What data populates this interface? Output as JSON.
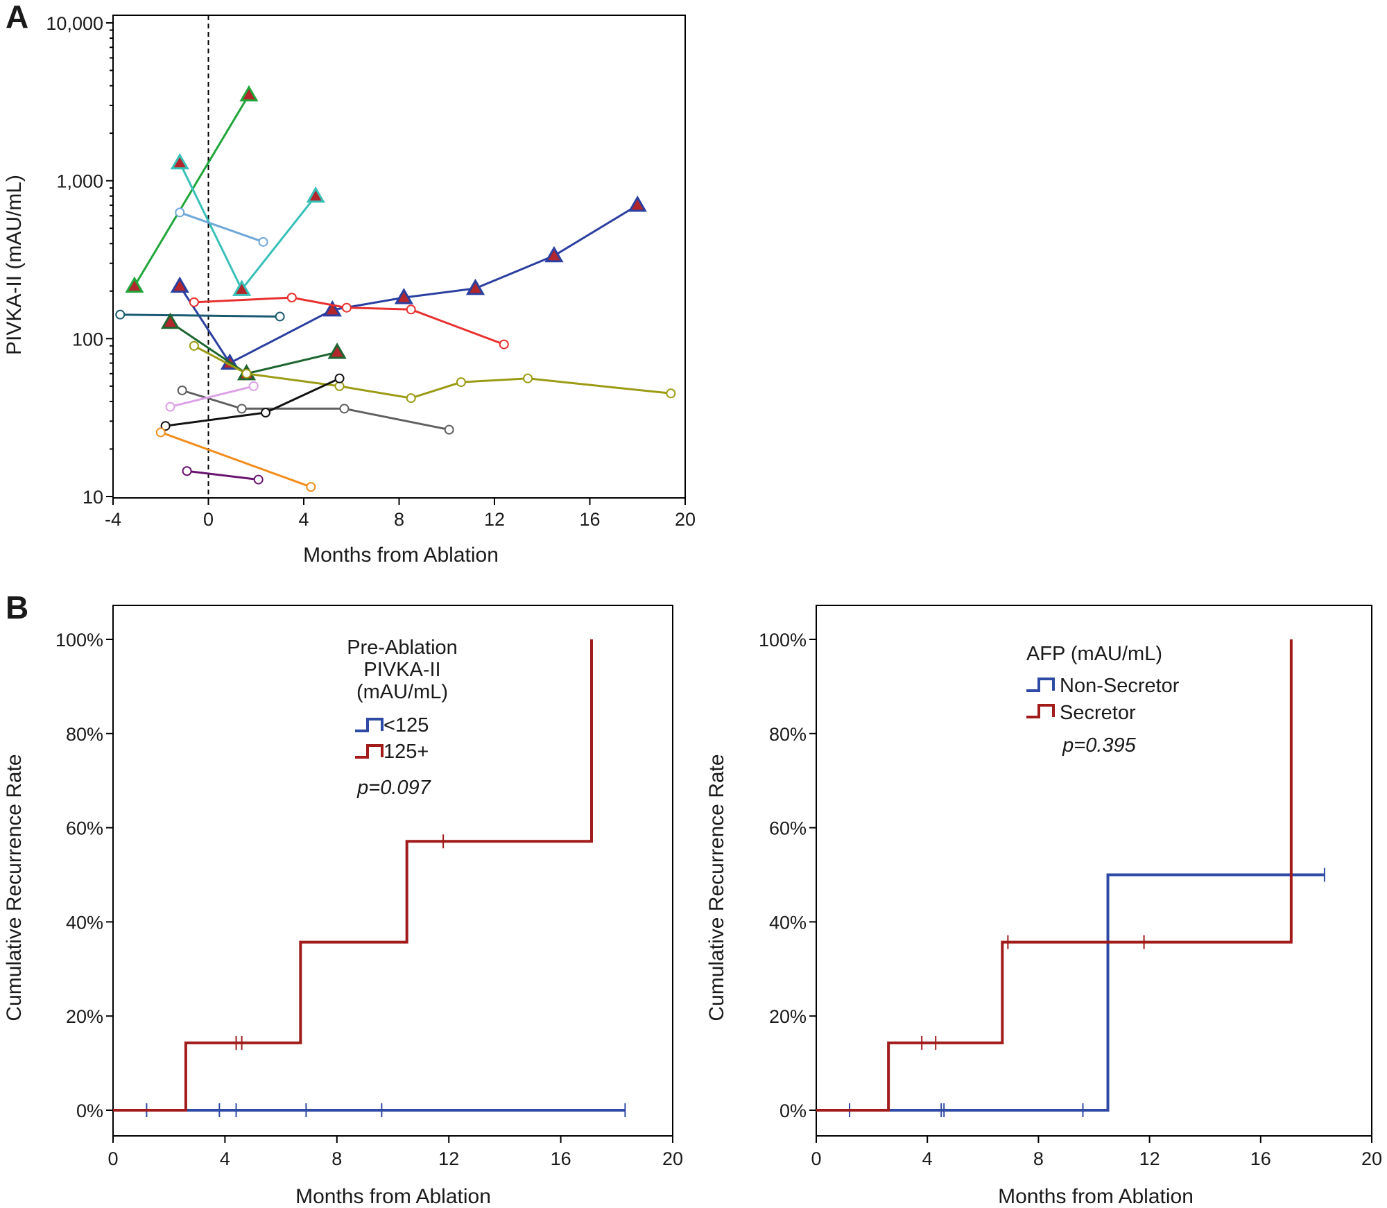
{
  "panel_labels": {
    "a": "A",
    "b": "B"
  },
  "chart_data": [
    {
      "id": "A",
      "type": "line",
      "title": "",
      "xlabel": "Months from Ablation",
      "ylabel": "PIVKA-II (mAU/mL)",
      "xlim": [
        -4,
        20
      ],
      "x_ticks": [
        -4,
        0,
        4,
        8,
        12,
        16,
        20
      ],
      "ylim": [
        10,
        10000
      ],
      "y_scale": "log",
      "y_ticks": [
        10,
        100,
        1000,
        10000
      ],
      "y_tick_labels": [
        "10",
        "100",
        "1,000",
        "10,000"
      ],
      "reference_line": {
        "x": 0,
        "style": "dashed"
      },
      "grid": false,
      "series": [
        {
          "color": "#21a63a",
          "marker": "triangle",
          "points": [
            [
              -3.1,
              215
            ],
            [
              1.7,
              3500
            ]
          ]
        },
        {
          "color": "#37c0b8",
          "marker": "triangle",
          "points": [
            [
              -1.2,
              1300
            ],
            [
              1.4,
              205
            ],
            [
              4.5,
              800
            ]
          ]
        },
        {
          "color": "#6ea7d8",
          "marker": "circle",
          "points": [
            [
              -1.2,
              630
            ],
            [
              2.3,
              410
            ]
          ]
        },
        {
          "color": "#2b3fa0",
          "marker": "triangle",
          "points": [
            [
              -1.2,
              215
            ],
            [
              0.9,
              70
            ],
            [
              5.2,
              152
            ],
            [
              8.2,
              182
            ],
            [
              11.2,
              208
            ],
            [
              14.5,
              335
            ],
            [
              18.0,
              700
            ]
          ]
        },
        {
          "color": "#e8302e",
          "marker": "circle",
          "points": [
            [
              -0.6,
              170
            ],
            [
              3.5,
              182
            ],
            [
              5.8,
              157
            ],
            [
              8.5,
              153
            ],
            [
              12.4,
              92
            ]
          ]
        },
        {
          "color": "#1a5a70",
          "marker": "circle",
          "points": [
            [
              -3.7,
              142
            ],
            [
              3.0,
              138
            ]
          ]
        },
        {
          "color": "#1e6630",
          "marker": "triangle",
          "points": [
            [
              -1.6,
              127
            ],
            [
              1.6,
              60
            ],
            [
              5.4,
              82
            ]
          ]
        },
        {
          "color": "#9b9b14",
          "marker": "circle",
          "points": [
            [
              -0.6,
              90
            ],
            [
              1.6,
              60
            ],
            [
              5.5,
              50
            ],
            [
              8.5,
              42
            ],
            [
              10.6,
              53
            ],
            [
              13.4,
              56
            ],
            [
              19.4,
              45
            ]
          ]
        },
        {
          "color": "#606060",
          "marker": "circle",
          "points": [
            [
              -1.1,
              47
            ],
            [
              1.4,
              36
            ],
            [
              5.7,
              36
            ],
            [
              10.1,
              26.5
            ]
          ]
        },
        {
          "color": "#dca0e6",
          "marker": "circle",
          "points": [
            [
              -1.6,
              37
            ],
            [
              1.9,
              50
            ]
          ]
        },
        {
          "color": "#111111",
          "marker": "circle",
          "points": [
            [
              -1.8,
              28
            ],
            [
              2.4,
              34
            ],
            [
              5.5,
              56
            ]
          ]
        },
        {
          "color": "#f28c1a",
          "marker": "circle",
          "points": [
            [
              -2.0,
              25.5
            ],
            [
              4.3,
              11.5
            ]
          ]
        },
        {
          "color": "#6a1470",
          "marker": "circle",
          "points": [
            [
              -0.9,
              14.5
            ],
            [
              2.1,
              12.8
            ]
          ]
        }
      ]
    },
    {
      "id": "B-left",
      "type": "line",
      "step": true,
      "title": "",
      "xlabel": "Months from Ablation",
      "ylabel": "Cumulative Recurrence Rate",
      "xlim": [
        0,
        20
      ],
      "x_ticks": [
        0,
        4,
        8,
        12,
        16,
        20
      ],
      "ylim": [
        0,
        1.0
      ],
      "y_ticks": [
        0,
        0.2,
        0.4,
        0.6,
        0.8,
        1.0
      ],
      "y_tick_labels": [
        "0%",
        "20%",
        "40%",
        "60%",
        "80%",
        "100%"
      ],
      "legend": {
        "title_lines": [
          "Pre-Ablation",
          "PIVKA-II",
          "(mAU/mL)"
        ],
        "pvalue": "p=0.097",
        "placement": "top-center"
      },
      "series": [
        {
          "name": "<125",
          "color": "#2e4aa5",
          "steps": [
            [
              0,
              0
            ],
            [
              18.3,
              0
            ]
          ],
          "censor_x": [
            1.2,
            3.8,
            4.4,
            6.9,
            9.6,
            18.3
          ]
        },
        {
          "name": "125+",
          "color": "#a11b1b",
          "steps": [
            [
              0,
              0
            ],
            [
              2.6,
              0.143
            ],
            [
              6.7,
              0.357
            ],
            [
              10.5,
              0.571
            ],
            [
              17.1,
              1.0
            ]
          ],
          "censor_x": [
            4.4,
            4.6,
            11.8
          ]
        }
      ]
    },
    {
      "id": "B-right",
      "type": "line",
      "step": true,
      "title": "",
      "xlabel": "Months from Ablation",
      "ylabel": "Cumulative Recurrence Rate",
      "xlim": [
        0,
        20
      ],
      "x_ticks": [
        0,
        4,
        8,
        12,
        16,
        20
      ],
      "ylim": [
        0,
        1.0
      ],
      "y_ticks": [
        0,
        0.2,
        0.4,
        0.6,
        0.8,
        1.0
      ],
      "y_tick_labels": [
        "0%",
        "20%",
        "40%",
        "60%",
        "80%",
        "100%"
      ],
      "legend": {
        "title_lines": [
          "AFP (mAU/mL)"
        ],
        "pvalue": "p=0.395",
        "placement": "top-center"
      },
      "series": [
        {
          "name": "Non-Secretor",
          "color": "#2e4aa5",
          "steps": [
            [
              0,
              0
            ],
            [
              10.5,
              0.5
            ],
            [
              18.3,
              0.5
            ]
          ],
          "censor_x": [
            1.2,
            4.5,
            4.6,
            9.6,
            18.3
          ]
        },
        {
          "name": "Secretor",
          "color": "#a11b1b",
          "steps": [
            [
              0,
              0
            ],
            [
              2.6,
              0.143
            ],
            [
              6.7,
              0.357
            ],
            [
              17.1,
              1.0
            ]
          ],
          "censor_x": [
            3.8,
            4.3,
            6.9,
            11.8
          ]
        }
      ]
    }
  ]
}
